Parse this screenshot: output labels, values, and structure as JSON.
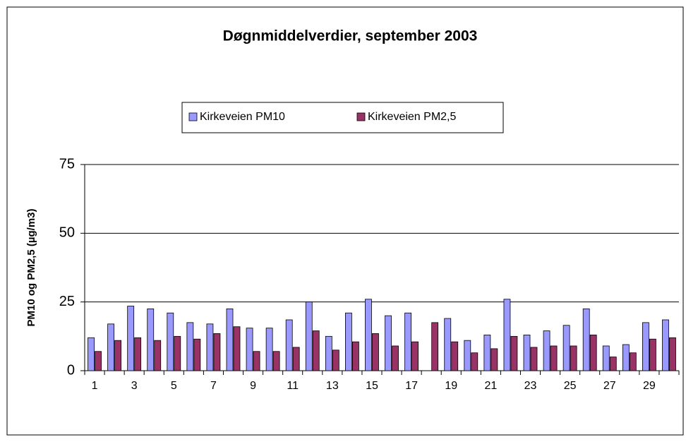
{
  "chart_data": {
    "type": "bar",
    "title": "Døgnmiddelverdier, september 2003",
    "y_label": "PM10 og PM2,5 (µg/m3)",
    "categories": [
      "1",
      null,
      "3",
      null,
      "5",
      null,
      "7",
      null,
      "9",
      null,
      "11",
      null,
      "13",
      null,
      "15",
      null,
      "17",
      null,
      "19",
      null,
      "21",
      null,
      "23",
      null,
      "25",
      null,
      "27",
      null,
      "29",
      null
    ],
    "series": [
      {
        "name": "Kirkeveien PM10",
        "color": "#9999ff",
        "values": [
          12,
          17,
          23.5,
          22.5,
          21,
          17.5,
          17,
          22.5,
          15.5,
          15.5,
          18.5,
          25,
          12.5,
          21,
          26,
          20,
          21,
          null,
          19,
          11,
          13,
          26,
          13,
          14.5,
          16.5,
          22.5,
          9,
          9.5,
          17.5,
          18.5
        ]
      },
      {
        "name": "Kirkeveien PM2,5",
        "color": "#993366",
        "values": [
          7,
          11,
          12,
          11,
          12.5,
          11.5,
          13.5,
          16,
          7,
          7,
          8.5,
          14.5,
          7.5,
          10.5,
          13.5,
          9,
          10.5,
          17.5,
          10.5,
          6.5,
          8,
          12.5,
          8.5,
          9,
          9,
          13,
          5,
          6.5,
          11.5,
          12
        ]
      }
    ],
    "ylim": [
      0,
      75
    ],
    "yticks": [
      0,
      25,
      50,
      75
    ],
    "grid": true,
    "legend": "top"
  }
}
